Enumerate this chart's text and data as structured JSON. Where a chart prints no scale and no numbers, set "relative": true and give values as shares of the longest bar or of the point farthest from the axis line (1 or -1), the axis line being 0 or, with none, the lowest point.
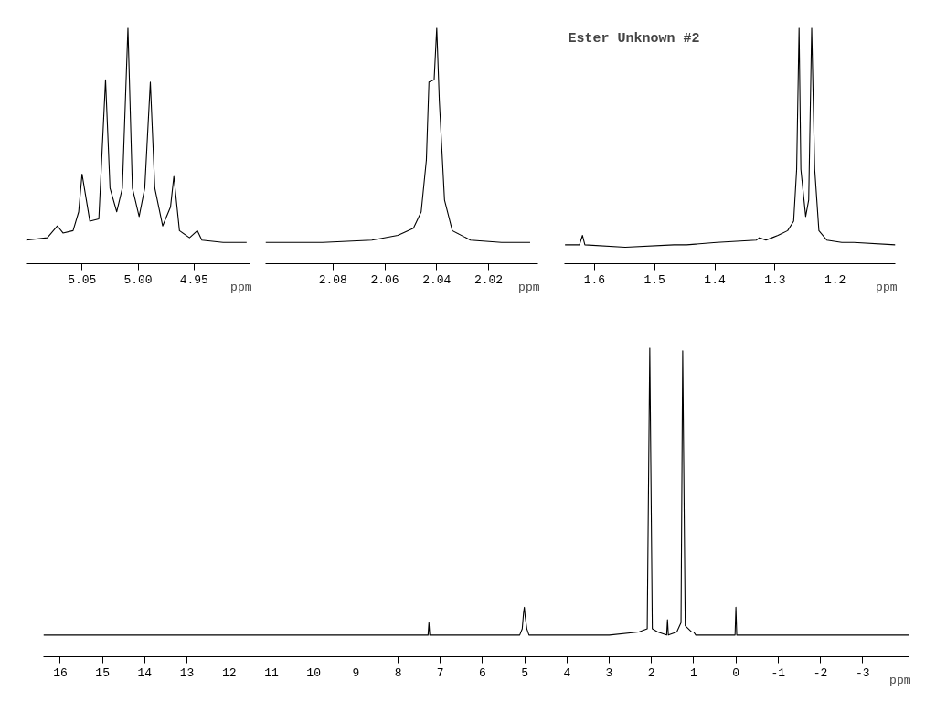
{
  "chart_data": [
    {
      "type": "line",
      "relative": true,
      "xlabel": "ppm",
      "xlim": [
        5.1,
        4.9
      ],
      "xticks": [
        5.05,
        {
          "value": 5,
          "label": "5.00"
        },
        4.95
      ],
      "marker": "none",
      "series": [
        {
          "color": "#000000",
          "x": [
            5.1,
            5.081,
            5.072,
            5.067,
            5.058,
            5.053,
            5.05,
            5.043,
            5.035,
            5.029,
            5.025,
            5.019,
            5.014,
            5.009,
            5.005,
            4.999,
            4.994,
            4.989,
            4.985,
            4.978,
            4.971,
            4.968,
            4.963,
            4.954,
            4.947,
            4.943,
            4.924,
            4.903
          ],
          "values": [
            0.1,
            0.11,
            0.16,
            0.13,
            0.14,
            0.22,
            0.38,
            0.18,
            0.19,
            0.78,
            0.32,
            0.22,
            0.32,
            1.0,
            0.32,
            0.2,
            0.32,
            0.77,
            0.32,
            0.16,
            0.24,
            0.37,
            0.14,
            0.11,
            0.14,
            0.1,
            0.09,
            0.09
          ]
        }
      ]
    },
    {
      "type": "line",
      "relative": true,
      "xlabel": "ppm",
      "xlim": [
        2.106,
        2.001
      ],
      "xticks": [
        2.08,
        2.06,
        2.04,
        2.02
      ],
      "marker": "none",
      "series": [
        {
          "color": "#000000",
          "x": [
            2.106,
            2.084,
            2.065,
            2.055,
            2.049,
            2.046,
            2.044,
            2.043,
            2.041,
            2.04,
            2.039,
            2.037,
            2.034,
            2.027,
            2.015,
            2.004
          ],
          "values": [
            0.09,
            0.09,
            0.1,
            0.12,
            0.15,
            0.22,
            0.44,
            0.77,
            0.78,
            1.0,
            0.69,
            0.27,
            0.14,
            0.1,
            0.09,
            0.09
          ]
        }
      ]
    },
    {
      "type": "line",
      "relative": true,
      "title": "Ester Unknown #2",
      "xlabel": "ppm",
      "xlim": [
        1.65,
        1.1
      ],
      "xticks": [
        1.6,
        1.5,
        1.4,
        1.3,
        1.2
      ],
      "marker": "none",
      "series": [
        {
          "color": "#000000",
          "x": [
            1.649,
            1.625,
            1.62,
            1.616,
            1.549,
            1.468,
            1.447,
            1.397,
            1.331,
            1.326,
            1.315,
            1.305,
            1.295,
            1.279,
            1.269,
            1.264,
            1.26,
            1.257,
            1.249,
            1.244,
            1.239,
            1.234,
            1.227,
            1.214,
            1.189,
            1.169,
            1.1
          ],
          "values": [
            0.08,
            0.08,
            0.12,
            0.08,
            0.07,
            0.08,
            0.08,
            0.09,
            0.1,
            0.11,
            0.1,
            0.11,
            0.12,
            0.14,
            0.18,
            0.4,
            1.0,
            0.4,
            0.2,
            0.27,
            1.0,
            0.4,
            0.14,
            0.1,
            0.09,
            0.09,
            0.08
          ]
        }
      ]
    },
    {
      "type": "line",
      "relative": true,
      "xlabel": "ppm",
      "xlim": [
        16.4,
        -4.1
      ],
      "xticks": [
        16,
        15,
        14,
        13,
        12,
        11,
        10,
        9,
        8,
        7,
        6,
        5,
        4,
        3,
        2,
        1,
        0,
        -1,
        -2,
        -3
      ],
      "marker": "none",
      "series": [
        {
          "color": "#000000",
          "x": [
            16.4,
            7.29,
            7.27,
            7.25,
            5.12,
            5.06,
            5.03,
            5.01,
            4.99,
            4.95,
            4.9,
            3.0,
            2.3,
            2.1,
            2.04,
            1.98,
            1.85,
            1.64,
            1.62,
            1.6,
            1.4,
            1.3,
            1.26,
            1.2,
            1.05,
            1.0,
            0.95,
            0.02,
            0.0,
            -0.02,
            -4.1
          ],
          "values": [
            0.07,
            0.07,
            0.11,
            0.07,
            0.07,
            0.09,
            0.14,
            0.16,
            0.13,
            0.09,
            0.07,
            0.07,
            0.08,
            0.09,
            1.0,
            0.09,
            0.08,
            0.07,
            0.12,
            0.07,
            0.08,
            0.11,
            0.99,
            0.1,
            0.08,
            0.08,
            0.07,
            0.07,
            0.16,
            0.07,
            0.07
          ]
        }
      ]
    }
  ]
}
